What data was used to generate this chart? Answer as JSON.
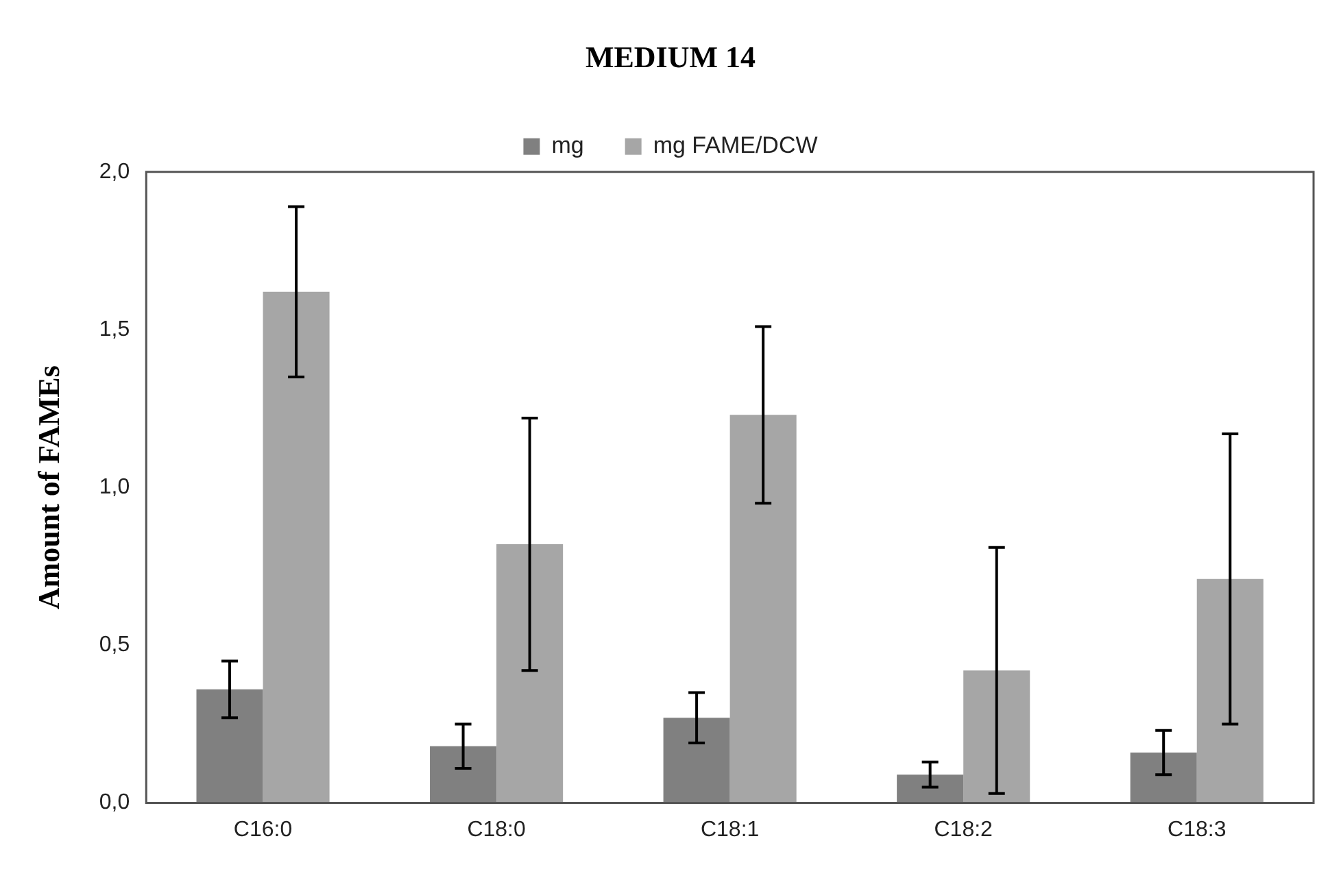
{
  "chart_data": {
    "type": "bar",
    "title": "MEDIUM 14",
    "ylabel": "Amount of FAMEs",
    "categories": [
      "C16:0",
      "C18:0",
      "C18:1",
      "C18:2",
      "C18:3"
    ],
    "series": [
      {
        "name": "mg",
        "color": "#808080",
        "values": [
          0.36,
          0.18,
          0.27,
          0.09,
          0.16
        ],
        "errors": [
          0.09,
          0.07,
          0.08,
          0.04,
          0.07
        ]
      },
      {
        "name": "mg FAME/DCW",
        "color": "#a6a6a6",
        "values": [
          1.62,
          0.82,
          1.23,
          0.42,
          0.71
        ],
        "errors": [
          0.27,
          0.4,
          0.28,
          0.39,
          0.46
        ]
      }
    ],
    "ylim": [
      0,
      2
    ],
    "yticks": [
      {
        "value": 0,
        "label": "0,0"
      },
      {
        "value": 0.5,
        "label": "0,5"
      },
      {
        "value": 1,
        "label": "1,0"
      },
      {
        "value": 1.5,
        "label": "1,5"
      },
      {
        "value": 2,
        "label": "2,0"
      }
    ],
    "grid": false,
    "legend": "top"
  }
}
